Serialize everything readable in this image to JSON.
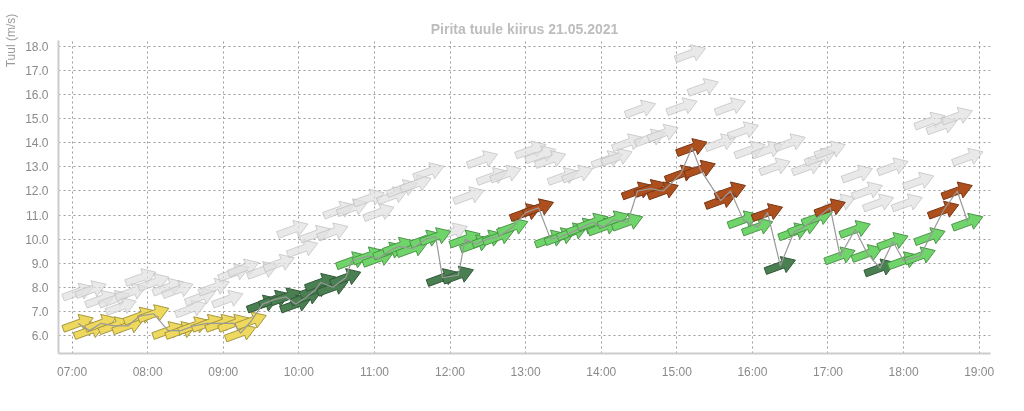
{
  "chart_data": {
    "type": "scatter",
    "title": "Pirita tuule kiirus 21.05.2021",
    "ylabel": "Tuul (m/s)",
    "xlim": [
      6.82,
      19.15
    ],
    "ylim": [
      5.25,
      18.25
    ],
    "xticks": [
      {
        "value": 7,
        "label": "07:00"
      },
      {
        "value": 8,
        "label": "08:00"
      },
      {
        "value": 9,
        "label": "09:00"
      },
      {
        "value": 10,
        "label": "10:00"
      },
      {
        "value": 11,
        "label": "11:00"
      },
      {
        "value": 12,
        "label": "12:00"
      },
      {
        "value": 13,
        "label": "13:00"
      },
      {
        "value": 14,
        "label": "14:00"
      },
      {
        "value": 15,
        "label": "15:00"
      },
      {
        "value": 16,
        "label": "16:00"
      },
      {
        "value": 17,
        "label": "17:00"
      },
      {
        "value": 18,
        "label": "18:00"
      },
      {
        "value": 19,
        "label": "19:00"
      }
    ],
    "yticks": [
      {
        "value": 6,
        "label": "6.0"
      },
      {
        "value": 7,
        "label": "7.0"
      },
      {
        "value": 8,
        "label": "8.0"
      },
      {
        "value": 9,
        "label": "9.0"
      },
      {
        "value": 10,
        "label": "10.0"
      },
      {
        "value": 11,
        "label": "11.0"
      },
      {
        "value": 12,
        "label": "12.0"
      },
      {
        "value": 13,
        "label": "13.0"
      },
      {
        "value": 14,
        "label": "14.0"
      },
      {
        "value": 15,
        "label": "15.0"
      },
      {
        "value": 16,
        "label": "16.0"
      },
      {
        "value": 17,
        "label": "17.0"
      },
      {
        "value": 18,
        "label": "18.0"
      }
    ],
    "grid": true,
    "marker": "triangle",
    "line_style": "solid",
    "series": [
      {
        "color": "#e0e0e0",
        "x": [
          7.08,
          7.25,
          7.38,
          7.56,
          7.65,
          7.78,
          7.91,
          8.08,
          8.27,
          8.4,
          8.57,
          8.7,
          8.88,
          9.06,
          9.14,
          9.27,
          9.52,
          9.74,
          9.92,
          10.05,
          10.22,
          10.45,
          10.53,
          10.71,
          10.93,
          11.06,
          11.24,
          11.37,
          11.55,
          11.72,
          12.03,
          12.25,
          12.43,
          12.56,
          12.74,
          13.07,
          13.2,
          13.33,
          13.5,
          13.69,
          14.08,
          14.21,
          14.35,
          14.52,
          14.65,
          14.82,
          15.07,
          15.18,
          15.35,
          15.58,
          15.71,
          15.88,
          15.97,
          16.2,
          16.3,
          16.5,
          16.73,
          16.9,
          17.03,
          17.16,
          17.39,
          17.52,
          17.67,
          17.86,
          18.05,
          18.2,
          18.35,
          18.51,
          18.71,
          18.85
        ],
        "values": [
          7.8,
          7.9,
          7.5,
          7.5,
          7.2,
          7.8,
          8.4,
          8.2,
          8.0,
          7.9,
          7.1,
          7.6,
          8.0,
          7.5,
          8.6,
          8.8,
          8.7,
          9.0,
          10.4,
          9.6,
          10.2,
          10.3,
          11.2,
          11.3,
          11.7,
          11.1,
          11.8,
          12.1,
          12.3,
          12.8,
          10.3,
          11.8,
          13.3,
          12.6,
          12.7,
          13.7,
          13.5,
          13.3,
          12.6,
          12.7,
          13.3,
          13.4,
          14.0,
          15.4,
          14.2,
          14.4,
          15.5,
          17.7,
          16.3,
          14.0,
          15.5,
          14.5,
          13.7,
          13.7,
          13.0,
          14.0,
          13.0,
          13.4,
          13.7,
          11.5,
          12.7,
          12.0,
          11.5,
          13.0,
          11.5,
          12.4,
          14.9,
          14.7,
          15.1,
          13.4
        ]
      },
      {
        "type": "line",
        "color": "#999999",
        "x": [
          7.08,
          7.23,
          7.38,
          7.56,
          7.74,
          7.89,
          8.08,
          8.27,
          8.44,
          8.61,
          8.79,
          8.97,
          9.14,
          9.23,
          9.37,
          9.52,
          9.68,
          9.83,
          9.96,
          10.1,
          10.22,
          10.29,
          10.45,
          10.62,
          10.7,
          10.92,
          11.05,
          11.19,
          11.32,
          11.5,
          11.68,
          11.81,
          11.9,
          12.11,
          12.2,
          12.34,
          12.5,
          12.64,
          12.83,
          13.0,
          13.17,
          13.33,
          13.46,
          13.62,
          13.75,
          13.89,
          14.03,
          14.16,
          14.35,
          14.48,
          14.65,
          14.82,
          15.05,
          15.2,
          15.31,
          15.58,
          15.71,
          15.88,
          16.07,
          16.2,
          16.37,
          16.55,
          16.68,
          16.86,
          17.03,
          17.16,
          17.36,
          17.52,
          17.69,
          17.86,
          18.0,
          18.22,
          18.35,
          18.53,
          18.71,
          18.85
        ],
        "values": [
          6.5,
          6.2,
          6.5,
          6.4,
          6.4,
          6.8,
          6.9,
          6.2,
          6.2,
          6.4,
          6.5,
          6.5,
          6.5,
          6.1,
          6.6,
          7.3,
          7.5,
          7.6,
          7.3,
          7.6,
          7.9,
          8.2,
          8.0,
          8.4,
          9.1,
          9.3,
          9.2,
          9.5,
          9.7,
          9.6,
          10.0,
          10.1,
          8.4,
          8.5,
          10.0,
          9.8,
          10.0,
          10.1,
          10.5,
          11.1,
          11.3,
          10.0,
          10.1,
          10.3,
          10.5,
          10.7,
          10.5,
          10.8,
          10.7,
          12.0,
          12.1,
          12.0,
          12.7,
          13.8,
          12.9,
          11.6,
          12.0,
          10.8,
          10.5,
          11.1,
          8.9,
          10.3,
          10.5,
          10.9,
          11.3,
          9.3,
          10.4,
          9.4,
          8.8,
          9.9,
          9.1,
          9.3,
          10.1,
          11.2,
          12.0,
          10.7
        ],
        "colors": [
          "#eed85e",
          "#eed85e",
          "#eed85e",
          "#eed85e",
          "#eed85e",
          "#eed85e",
          "#eed85e",
          "#eed85e",
          "#eed85e",
          "#eed85e",
          "#eed85e",
          "#eed85e",
          "#eed85e",
          "#eed85e",
          "#eed85e",
          "#4a7f52",
          "#4a7f52",
          "#4a7f52",
          "#4a7f52",
          "#4a7f52",
          "#4a7f52",
          "#4a7f52",
          "#4a7f52",
          "#4a7f52",
          "#6fd56a",
          "#6fd56a",
          "#6fd56a",
          "#6fd56a",
          "#6fd56a",
          "#6fd56a",
          "#6fd56a",
          "#6fd56a",
          "#4a7f52",
          "#4a7f52",
          "#6fd56a",
          "#6fd56a",
          "#6fd56a",
          "#6fd56a",
          "#6fd56a",
          "#ae4f1e",
          "#ae4f1e",
          "#6fd56a",
          "#6fd56a",
          "#6fd56a",
          "#6fd56a",
          "#6fd56a",
          "#6fd56a",
          "#6fd56a",
          "#6fd56a",
          "#ae4f1e",
          "#ae4f1e",
          "#ae4f1e",
          "#ae4f1e",
          "#ae4f1e",
          "#ae4f1e",
          "#ae4f1e",
          "#ae4f1e",
          "#6fd56a",
          "#6fd56a",
          "#ae4f1e",
          "#4a7f52",
          "#6fd56a",
          "#6fd56a",
          "#6fd56a",
          "#ae4f1e",
          "#6fd56a",
          "#6fd56a",
          "#6fd56a",
          "#4a7f52",
          "#6fd56a",
          "#6fd56a",
          "#6fd56a",
          "#6fd56a",
          "#ae4f1e",
          "#ae4f1e",
          "#6fd56a"
        ]
      }
    ]
  }
}
